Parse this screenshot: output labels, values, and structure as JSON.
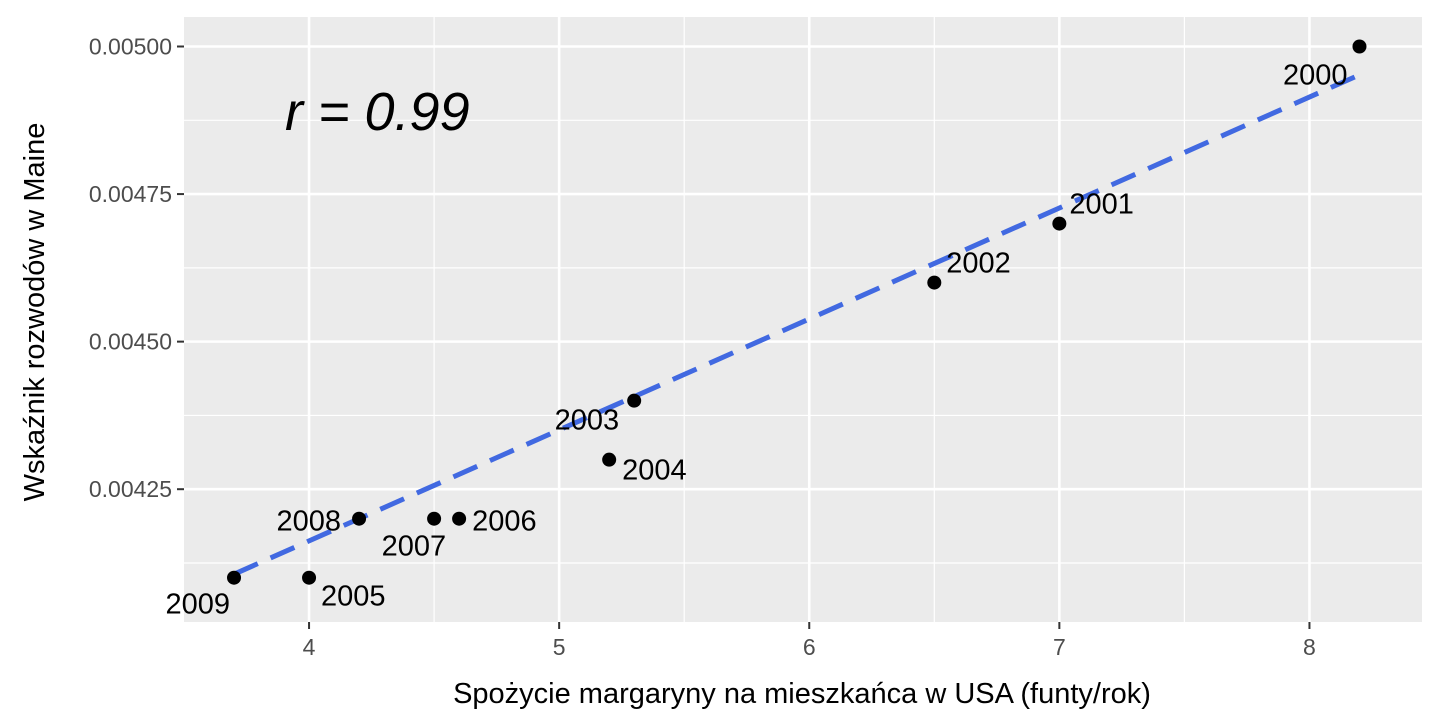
{
  "chart_data": {
    "type": "scatter",
    "xlabel": "Spożycie margaryny na mieszkańca w USA (funty/rok)",
    "ylabel": "Wskaźnik rozwodów w Maine",
    "xlim": [
      3.5,
      8.45
    ],
    "ylim": [
      0.004025,
      0.00505
    ],
    "x_ticks": [
      "4",
      "5",
      "6",
      "7",
      "8"
    ],
    "y_ticks": [
      "0.00425",
      "0.00450",
      "0.00475",
      "0.00500"
    ],
    "grid": true,
    "annotation": "r = 0.99",
    "points": [
      {
        "label": "2000",
        "x": 8.2,
        "y": 0.005
      },
      {
        "label": "2001",
        "x": 7.0,
        "y": 0.0047
      },
      {
        "label": "2002",
        "x": 6.5,
        "y": 0.0046
      },
      {
        "label": "2003",
        "x": 5.3,
        "y": 0.0044
      },
      {
        "label": "2004",
        "x": 5.2,
        "y": 0.0043
      },
      {
        "label": "2005",
        "x": 4.0,
        "y": 0.0041
      },
      {
        "label": "2006",
        "x": 4.6,
        "y": 0.0042
      },
      {
        "label": "2007",
        "x": 4.5,
        "y": 0.0042
      },
      {
        "label": "2008",
        "x": 4.2,
        "y": 0.0042
      },
      {
        "label": "2009",
        "x": 3.7,
        "y": 0.0041
      }
    ],
    "trendline": {
      "style": "dashed",
      "color": "#4169e1",
      "x": [
        3.7,
        8.2
      ],
      "y": [
        0.004106,
        0.004952
      ]
    }
  }
}
